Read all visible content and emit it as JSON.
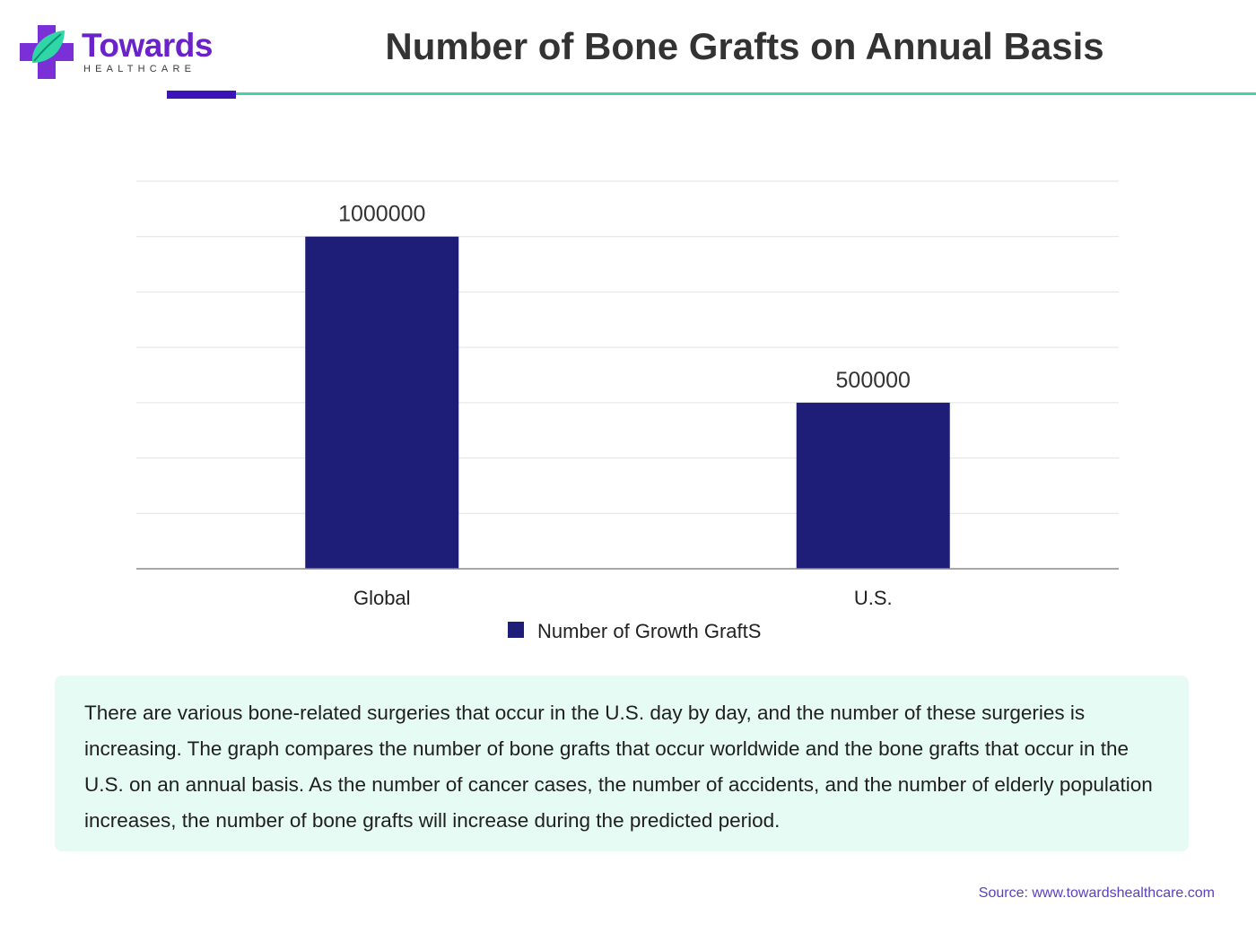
{
  "brand": {
    "name": "Towards",
    "subname": "HEALTHCARE",
    "colors": {
      "purple": "#6a22c9",
      "teal": "#2fd7a6",
      "dark_purple": "#3b14b8"
    },
    "icon": "medical-cross-leaf-icon"
  },
  "header": {
    "title": "Number of Bone Grafts on Annual Basis"
  },
  "chart_data": {
    "type": "bar",
    "categories": [
      "Global",
      "U.S."
    ],
    "series": [
      {
        "name": "Number of Growth GraftS",
        "values": [
          1000000,
          500000
        ],
        "color": "#1e1e78"
      }
    ],
    "data_labels": [
      "1000000",
      "500000"
    ],
    "title": "",
    "xlabel": "",
    "ylabel": "",
    "ylim": [
      0,
      1166667
    ],
    "grid": true,
    "legend_position": "bottom"
  },
  "description": "There are various bone-related surgeries that occur in the U.S. day by day, and the number of these surgeries is increasing. The graph compares the number of bone grafts that occur worldwide and the bone grafts that occur in the U.S. on an annual basis. As the number of cancer cases, the number of accidents, and the number of elderly population increases, the number of bone grafts will increase during the predicted period.",
  "source": "Source: www.towardshealthcare.com"
}
